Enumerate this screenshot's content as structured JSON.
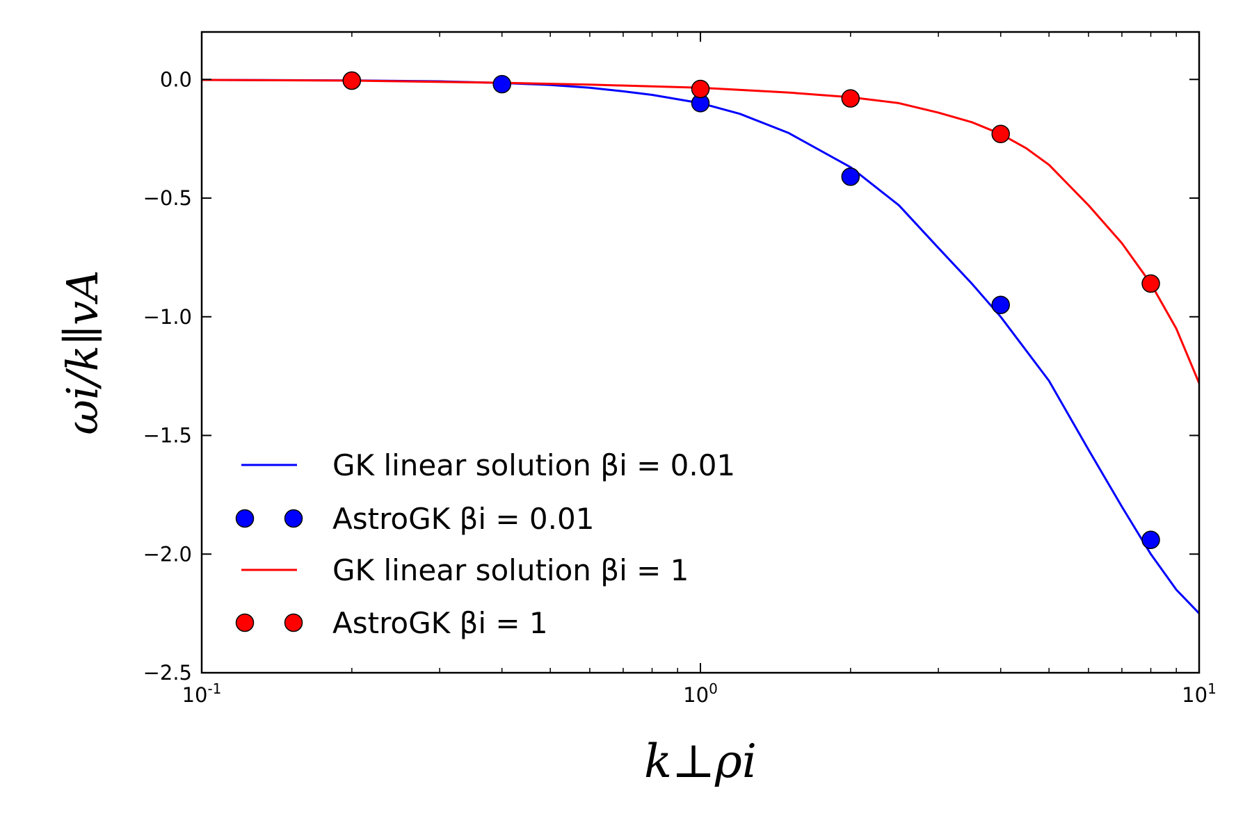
{
  "chart_data": {
    "type": "line",
    "xscale": "log",
    "xlim": [
      0.1,
      10
    ],
    "ylim": [
      -2.5,
      0.2
    ],
    "grid": false,
    "legend_position": "lower-left",
    "xlabel": "k⊥ρi",
    "ylabel": "ωi/k∥vA",
    "x_ticks": [
      {
        "value": 0.1,
        "base": "10",
        "exp": "-1"
      },
      {
        "value": 1,
        "base": "10",
        "exp": "0"
      },
      {
        "value": 10,
        "base": "10",
        "exp": "1"
      }
    ],
    "y_ticks": [
      {
        "value": 0.0,
        "label": "0.0"
      },
      {
        "value": -0.5,
        "label": "−0.5"
      },
      {
        "value": -1.0,
        "label": "−1.0"
      },
      {
        "value": -1.5,
        "label": "−1.5"
      },
      {
        "value": -2.0,
        "label": "−2.0"
      },
      {
        "value": -2.5,
        "label": "−2.5"
      }
    ],
    "series": [
      {
        "name": "GK linear solution βi = 0.01",
        "kind": "line",
        "color": "#0000ff",
        "x": [
          0.1,
          0.2,
          0.3,
          0.4,
          0.5,
          0.6,
          0.7,
          0.8,
          1.0,
          1.2,
          1.5,
          2.0,
          2.5,
          3.0,
          3.5,
          4.0,
          5.0,
          6.0,
          7.0,
          8.0,
          9.0,
          10.0
        ],
        "y": [
          -0.002,
          -0.004,
          -0.008,
          -0.015,
          -0.023,
          -0.035,
          -0.05,
          -0.065,
          -0.1,
          -0.145,
          -0.225,
          -0.37,
          -0.53,
          -0.71,
          -0.86,
          -1.0,
          -1.27,
          -1.56,
          -1.8,
          -2.0,
          -2.15,
          -2.25
        ]
      },
      {
        "name": "AstroGK βi = 0.01",
        "kind": "scatter",
        "color": "#0000ff",
        "x": [
          0.2,
          0.4,
          1.0,
          2.0,
          4.0,
          8.0
        ],
        "y": [
          -0.005,
          -0.02,
          -0.1,
          -0.41,
          -0.95,
          -1.94
        ]
      },
      {
        "name": "GK linear solution βi = 1",
        "kind": "line",
        "color": "#ff0000",
        "x": [
          0.1,
          0.2,
          0.4,
          0.6,
          1.0,
          1.5,
          2.0,
          2.5,
          3.0,
          3.5,
          4.0,
          4.5,
          5.0,
          6.0,
          7.0,
          8.0,
          9.0,
          10.0
        ],
        "y": [
          -0.002,
          -0.005,
          -0.014,
          -0.022,
          -0.035,
          -0.055,
          -0.075,
          -0.1,
          -0.14,
          -0.18,
          -0.23,
          -0.29,
          -0.36,
          -0.53,
          -0.69,
          -0.86,
          -1.05,
          -1.28
        ]
      },
      {
        "name": "AstroGK βi = 1",
        "kind": "scatter",
        "color": "#ff0000",
        "x": [
          0.2,
          1.0,
          2.0,
          4.0,
          8.0
        ],
        "y": [
          -0.005,
          -0.04,
          -0.08,
          -0.23,
          -0.86
        ]
      }
    ]
  }
}
